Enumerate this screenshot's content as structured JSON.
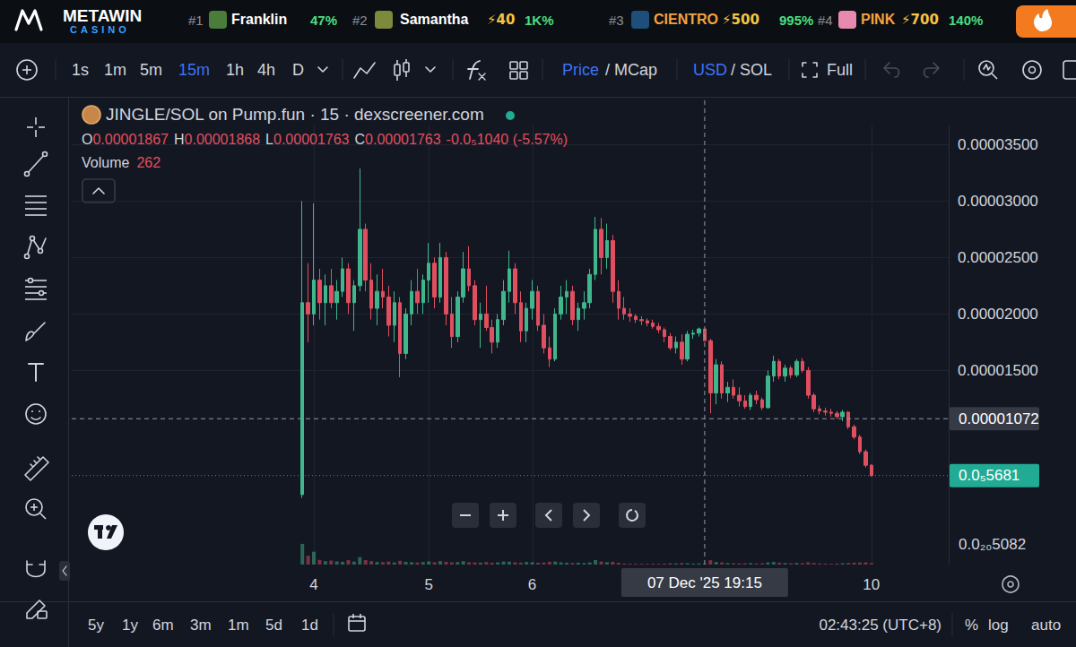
{
  "page": {
    "banner": {
      "logo": "METAWIN",
      "logo_sub": "CASINO",
      "leaders": [
        {
          "rank": "#1",
          "name": "Franklin",
          "boost": null,
          "score": "47%"
        },
        {
          "rank": "#2",
          "name": "Samantha",
          "boost": "⚡40",
          "score": "1K%"
        },
        {
          "rank": "#3",
          "name": "CIENTRO",
          "boost": "⚡500",
          "score": "995%"
        },
        {
          "rank": "#4",
          "name": "PINK",
          "boost": "⚡700",
          "score": "140%"
        }
      ]
    },
    "toolbar": {
      "intervals": [
        "1s",
        "1m",
        "5m",
        "15m",
        "1h",
        "4h",
        "D"
      ],
      "active_interval": "15m",
      "price_toggle": [
        "Price",
        "/ MCap"
      ],
      "currency_toggle": [
        "USD",
        "/ SOL"
      ],
      "full": "Full"
    },
    "bottom": {
      "ranges": [
        "5y",
        "1y",
        "6m",
        "3m",
        "1m",
        "5d",
        "1d"
      ],
      "clock": "02:43:25 (UTC+8)",
      "options": [
        "%",
        "log",
        "auto"
      ]
    },
    "scale_label": "0.0₂₀5082"
  },
  "chart_data": {
    "type": "candlestick",
    "title": "JINGLE/SOL on Pump.fun · 15 · dexscreener.com",
    "header": {
      "ohlc": [
        {
          "key": "O",
          "value": "0.00001867"
        },
        {
          "key": "H",
          "value": "0.00001868"
        },
        {
          "key": "L",
          "value": "0.00001763"
        },
        {
          "key": "C",
          "value": "0.00001763"
        }
      ],
      "change": "-0.0₅1040 (-5.57%)",
      "volume_key": "Volume",
      "volume_value": 262
    },
    "categories": [
      null,
      null,
      "4",
      null,
      null,
      null,
      null,
      null,
      null,
      null,
      null,
      null,
      null,
      null,
      null,
      null,
      null,
      null,
      null,
      null,
      null,
      null,
      "5",
      null,
      null,
      null,
      null,
      null,
      null,
      null,
      null,
      null,
      null,
      null,
      null,
      null,
      null,
      null,
      null,
      null,
      "6",
      null,
      null,
      null,
      null,
      null,
      null,
      null,
      null,
      null,
      null,
      null,
      null,
      null,
      null,
      null,
      null,
      null,
      null,
      null,
      null,
      null,
      null,
      null,
      null,
      null,
      null,
      null,
      null,
      null,
      null,
      null,
      null,
      null,
      null,
      null,
      null,
      null,
      null,
      null,
      null,
      null,
      null,
      null,
      null,
      null,
      null,
      null,
      null,
      null,
      null,
      null,
      null,
      null,
      null,
      null,
      null,
      null,
      null,
      "10"
    ],
    "series": [
      {
        "values": [
          [
            4e-06,
            3e-05,
            3.7e-06,
            2.1e-05
          ],
          [
            2.1e-05,
            2.45e-05,
            1.75e-05,
            2e-05
          ],
          [
            2e-05,
            2.98e-05,
            1.9e-05,
            2.3e-05
          ],
          [
            2.3e-05,
            2.4e-05,
            1.95e-05,
            2.1e-05
          ],
          [
            2.1e-05,
            2.35e-05,
            1.9e-05,
            2.25e-05
          ],
          [
            2.25e-05,
            2.4e-05,
            2.05e-05,
            2.1e-05
          ],
          [
            2.1e-05,
            2.3e-05,
            1.95e-05,
            2.2e-05
          ],
          [
            2.2e-05,
            2.5e-05,
            2.15e-05,
            2.4e-05
          ],
          [
            2.4e-05,
            2.45e-05,
            2e-05,
            2.1e-05
          ],
          [
            2.1e-05,
            2.3e-05,
            1.85e-05,
            2.25e-05
          ],
          [
            2.25e-05,
            3.29e-05,
            2.2e-05,
            2.75e-05
          ],
          [
            2.75e-05,
            2.8e-05,
            2.2e-05,
            2.3e-05
          ],
          [
            2.3e-05,
            2.45e-05,
            1.95e-05,
            2.05e-05
          ],
          [
            2.05e-05,
            2.35e-05,
            1.9e-05,
            2.2e-05
          ],
          [
            2.2e-05,
            2.4e-05,
            2.05e-05,
            2.15e-05
          ],
          [
            2.15e-05,
            2.25e-05,
            1.8e-05,
            1.9e-05
          ],
          [
            1.9e-05,
            2.2e-05,
            1.75e-05,
            2.1e-05
          ],
          [
            2.1e-05,
            2.15e-05,
            1.44e-05,
            1.65e-05
          ],
          [
            1.65e-05,
            2.05e-05,
            1.6e-05,
            2e-05
          ],
          [
            2e-05,
            2.3e-05,
            1.9e-05,
            2.2e-05
          ],
          [
            2.2e-05,
            2.4e-05,
            2e-05,
            2.1e-05
          ],
          [
            2.1e-05,
            2.35e-05,
            2e-05,
            2.3e-05
          ],
          [
            2.3e-05,
            2.63e-05,
            2.1e-05,
            2.45e-05
          ],
          [
            2.45e-05,
            2.5e-05,
            2.05e-05,
            2.15e-05
          ],
          [
            2.15e-05,
            2.63e-05,
            2.1e-05,
            2.5e-05
          ],
          [
            2.5e-05,
            2.55e-05,
            1.9e-05,
            2e-05
          ],
          [
            2e-05,
            2.15e-05,
            1.7e-05,
            1.8e-05
          ],
          [
            1.8e-05,
            2.2e-05,
            1.75e-05,
            2.15e-05
          ],
          [
            2.15e-05,
            2.55e-05,
            2.1e-05,
            2.4e-05
          ],
          [
            2.4e-05,
            2.6e-05,
            2.2e-05,
            2.25e-05
          ],
          [
            2.25e-05,
            2.3e-05,
            1.9e-05,
            1.95e-05
          ],
          [
            1.95e-05,
            2.1e-05,
            1.7e-05,
            2e-05
          ],
          [
            2e-05,
            2.25e-05,
            1.85e-05,
            1.88e-05
          ],
          [
            1.88e-05,
            1.95e-05,
            1.65e-05,
            1.75e-05
          ],
          [
            1.75e-05,
            2e-05,
            1.7e-05,
            1.95e-05
          ],
          [
            1.95e-05,
            2.3e-05,
            1.9e-05,
            2.2e-05
          ],
          [
            2.2e-05,
            2.56e-05,
            2.1e-05,
            2.4e-05
          ],
          [
            2.4e-05,
            2.45e-05,
            2e-05,
            2.1e-05
          ],
          [
            2.1e-05,
            2.2e-05,
            1.75e-05,
            1.85e-05
          ],
          [
            1.85e-05,
            2.1e-05,
            1.75e-05,
            2.05e-05
          ],
          [
            2.05e-05,
            2.3e-05,
            1.95e-05,
            2.2e-05
          ],
          [
            2.2e-05,
            2.25e-05,
            1.85e-05,
            1.9e-05
          ],
          [
            1.9e-05,
            2e-05,
            1.65e-05,
            1.7e-05
          ],
          [
            1.7e-05,
            1.8e-05,
            1.53e-05,
            1.6e-05
          ],
          [
            1.6e-05,
            2.05e-05,
            1.58e-05,
            2e-05
          ],
          [
            2e-05,
            2.25e-05,
            1.95e-05,
            2.15e-05
          ],
          [
            2.15e-05,
            2.3e-05,
            2e-05,
            2.2e-05
          ],
          [
            2.2e-05,
            2.25e-05,
            1.9e-05,
            1.95e-05
          ],
          [
            1.95e-05,
            2.1e-05,
            1.85e-05,
            2.05e-05
          ],
          [
            2.05e-05,
            2.2e-05,
            1.95e-05,
            2.1e-05
          ],
          [
            2.1e-05,
            2.4e-05,
            2.05e-05,
            2.35e-05
          ],
          [
            2.35e-05,
            2.86e-05,
            2.3e-05,
            2.75e-05
          ],
          [
            2.75e-05,
            2.85e-05,
            2.35e-05,
            2.5e-05
          ],
          [
            2.5e-05,
            2.8e-05,
            2.4e-05,
            2.65e-05
          ],
          [
            2.65e-05,
            2.7e-05,
            2.1e-05,
            2.2e-05
          ],
          [
            2.2e-05,
            2.3e-05,
            1.95e-05,
            2.05e-05
          ],
          [
            2.05e-05,
            2.15e-05,
            1.95e-05,
            2e-05
          ],
          [
            2e-05,
            2.05e-05,
            1.93e-05,
            1.98e-05
          ],
          [
            1.98e-05,
            2e-05,
            1.92e-05,
            1.95e-05
          ],
          [
            1.95e-05,
            1.98e-05,
            1.9e-05,
            1.94e-05
          ],
          [
            1.94e-05,
            1.96e-05,
            1.89e-05,
            1.92e-05
          ],
          [
            1.92e-05,
            1.95e-05,
            1.87e-05,
            1.89e-05
          ],
          [
            1.89e-05,
            1.92e-05,
            1.83e-05,
            1.86e-05
          ],
          [
            1.86e-05,
            1.88e-05,
            1.75e-05,
            1.8e-05
          ],
          [
            1.8e-05,
            1.83e-05,
            1.68e-05,
            1.7e-05
          ],
          [
            1.7e-05,
            1.8e-05,
            1.65e-05,
            1.75e-05
          ],
          [
            1.75e-05,
            1.82e-05,
            1.55e-05,
            1.6e-05
          ],
          [
            1.6e-05,
            1.85e-05,
            1.58e-05,
            1.82e-05
          ],
          [
            1.82e-05,
            1.86e-05,
            1.78e-05,
            1.83e-05
          ],
          [
            1.83e-05,
            1.88e-05,
            1.8e-05,
            1.867e-05
          ],
          [
            1.867e-05,
            1.868e-05,
            1.763e-05,
            1.763e-05
          ],
          [
            1.763e-05,
            1.78e-05,
            1.12e-05,
            1.3e-05
          ],
          [
            1.3e-05,
            1.6e-05,
            1.2e-05,
            1.55e-05
          ],
          [
            1.55e-05,
            1.58e-05,
            1.25e-05,
            1.3e-05
          ],
          [
            1.3e-05,
            1.4e-05,
            1.22e-05,
            1.35e-05
          ],
          [
            1.35e-05,
            1.42e-05,
            1.25e-05,
            1.28e-05
          ],
          [
            1.28e-05,
            1.35e-05,
            1.18e-05,
            1.23e-05
          ],
          [
            1.23e-05,
            1.28e-05,
            1.16e-05,
            1.18e-05
          ],
          [
            1.18e-05,
            1.3e-05,
            1.15e-05,
            1.28e-05
          ],
          [
            1.28e-05,
            1.32e-05,
            1.2e-05,
            1.24e-05
          ],
          [
            1.24e-05,
            1.26e-05,
            1.15e-05,
            1.17e-05
          ],
          [
            1.17e-05,
            1.5e-05,
            1.16e-05,
            1.45e-05
          ],
          [
            1.45e-05,
            1.63e-05,
            1.4e-05,
            1.58e-05
          ],
          [
            1.58e-05,
            1.6e-05,
            1.42e-05,
            1.45e-05
          ],
          [
            1.45e-05,
            1.55e-05,
            1.4e-05,
            1.52e-05
          ],
          [
            1.52e-05,
            1.54e-05,
            1.43e-05,
            1.46e-05
          ],
          [
            1.46e-05,
            1.6e-05,
            1.44e-05,
            1.58e-05
          ],
          [
            1.58e-05,
            1.61e-05,
            1.48e-05,
            1.5e-05
          ],
          [
            1.5e-05,
            1.53e-05,
            1.25e-05,
            1.28e-05
          ],
          [
            1.28e-05,
            1.3e-05,
            1.13e-05,
            1.16e-05
          ],
          [
            1.16e-05,
            1.19e-05,
            1.11e-05,
            1.14e-05
          ],
          [
            1.14e-05,
            1.17e-05,
            1.1e-05,
            1.13e-05
          ],
          [
            1.13e-05,
            1.16e-05,
            1.09e-05,
            1.12e-05
          ],
          [
            1.12e-05,
            1.14e-05,
            1.07e-05,
            1.09e-05
          ],
          [
            1.09e-05,
            1.15e-05,
            1.05e-05,
            1.13e-05
          ],
          [
            1.13e-05,
            1.14e-05,
            9.8e-06,
            1e-05
          ],
          [
            1e-05,
            1.02e-05,
            8.9e-06,
            9.1e-06
          ],
          [
            9.1e-06,
            9.3e-06,
            7.6e-06,
            7.8e-06
          ],
          [
            7.8e-06,
            8e-06,
            6.4e-06,
            6.6e-06
          ],
          [
            6.6e-06,
            6.7e-06,
            5.6e-06,
            5.681e-06
          ]
        ]
      }
    ],
    "volume": [
      4200,
      1800,
      2600,
      950,
      700,
      820,
      640,
      560,
      900,
      600,
      1500,
      900,
      700,
      520,
      480,
      610,
      430,
      760,
      550,
      480,
      420,
      500,
      650,
      480,
      700,
      560,
      450,
      520,
      690,
      470,
      430,
      390,
      520,
      380,
      440,
      610,
      580,
      460,
      400,
      520,
      480,
      360,
      420,
      560,
      610,
      440,
      380,
      330,
      360,
      300,
      420,
      900,
      620,
      480,
      560,
      380,
      210,
      180,
      160,
      150,
      140,
      170,
      150,
      220,
      260,
      240,
      320,
      280,
      190,
      230,
      262,
      880,
      520,
      430,
      310,
      270,
      240,
      250,
      300,
      220,
      260,
      450,
      520,
      380,
      300,
      260,
      340,
      280,
      460,
      320,
      210,
      180,
      170,
      200,
      260,
      330,
      380,
      420,
      460,
      300
    ],
    "volume_ylim": [
      0,
      20000
    ],
    "ylim": [
      -2.2e-06,
      3.67e-05
    ],
    "yticks": [
      {
        "value": 1.5e-05,
        "label": "0.00001500"
      },
      {
        "value": 2e-05,
        "label": "0.00002000"
      },
      {
        "value": 2.5e-05,
        "label": "0.00002500"
      },
      {
        "value": 3e-05,
        "label": "0.00003000"
      },
      {
        "value": 3.5e-05,
        "label": "0.00003500"
      }
    ],
    "grid": true,
    "crosshair": {
      "index": 70,
      "x_label": "07 Dec '25 19:15",
      "y": 1.072e-05,
      "y_label": "0.00001072"
    },
    "last_price_label": "0.0₅5681"
  }
}
